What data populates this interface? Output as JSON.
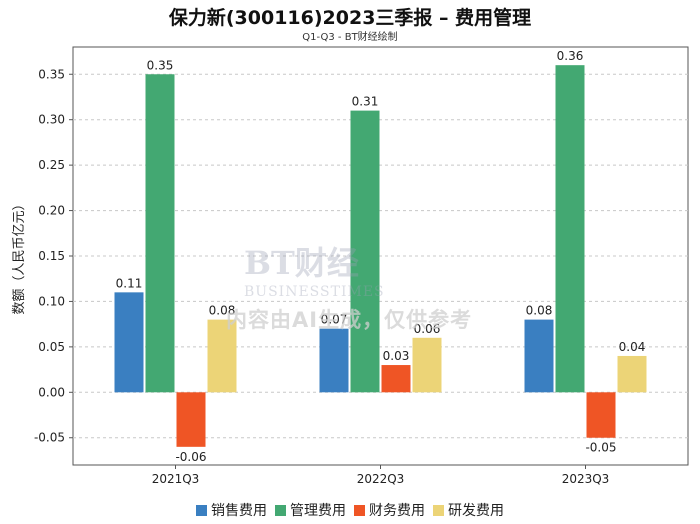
{
  "title": "保力新(300116)2023三季报 – 费用管理",
  "subtitle": "Q1-Q3 - BT财经绘制",
  "watermark": {
    "text": "内容由AI生成，仅供参考",
    "logo_main": "BT财经",
    "logo_sub": "BUSINESSTIMES"
  },
  "chart_data": {
    "type": "bar",
    "categories": [
      "2021Q3",
      "2022Q3",
      "2023Q3"
    ],
    "ylabel": "数额（人民币亿元）",
    "xlabel": "",
    "ylim": [
      -0.08,
      0.38
    ],
    "yticks": [
      -0.05,
      0.0,
      0.05,
      0.1,
      0.15,
      0.2,
      0.25,
      0.3,
      0.35
    ],
    "grid": true,
    "legend_position": "bottom",
    "series": [
      {
        "name": "销售费用",
        "color": "#3a7fc1",
        "values": [
          0.11,
          0.07,
          0.08
        ]
      },
      {
        "name": "管理费用",
        "color": "#43a872",
        "values": [
          0.35,
          0.31,
          0.36
        ]
      },
      {
        "name": "财务费用",
        "color": "#ef5525",
        "values": [
          -0.06,
          0.03,
          -0.05
        ]
      },
      {
        "name": "研发费用",
        "color": "#ecd477",
        "values": [
          0.08,
          0.06,
          0.04
        ]
      }
    ]
  }
}
